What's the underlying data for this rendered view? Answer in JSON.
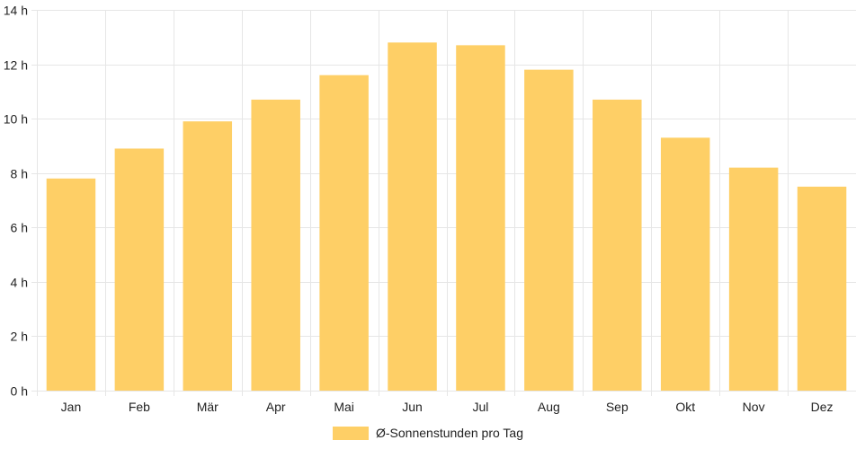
{
  "chart_data": {
    "type": "bar",
    "categories": [
      "Jan",
      "Feb",
      "Mär",
      "Apr",
      "Mai",
      "Jun",
      "Jul",
      "Aug",
      "Sep",
      "Okt",
      "Nov",
      "Dez"
    ],
    "series": [
      {
        "name": "Ø-Sonnenstunden pro Tag",
        "values": [
          7.8,
          8.9,
          9.9,
          10.7,
          11.6,
          12.8,
          12.7,
          11.8,
          10.7,
          9.3,
          8.2,
          7.5
        ],
        "color": "#fecf66"
      }
    ],
    "ylim": [
      0,
      14
    ],
    "y_ticks": [
      0,
      2,
      4,
      6,
      8,
      10,
      12,
      14
    ],
    "y_tick_unit": " h",
    "grid": true,
    "legend_position": "bottom",
    "grid_color": "#e6e6e6"
  }
}
